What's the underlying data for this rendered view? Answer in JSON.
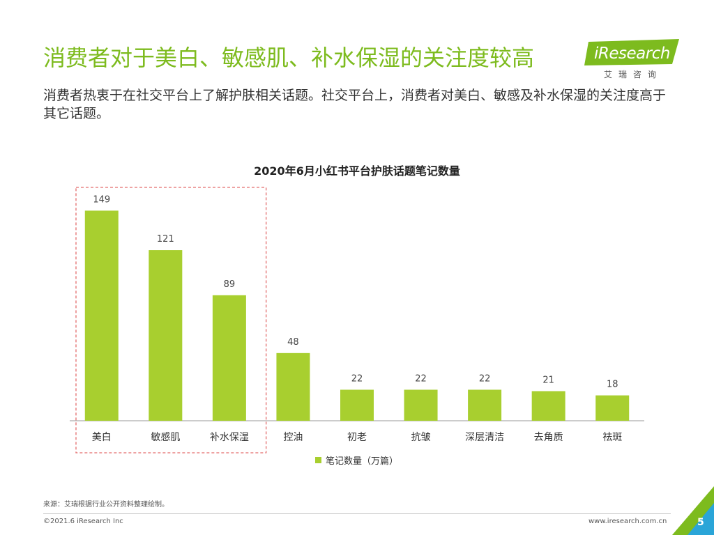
{
  "title": "消费者对于美白、敏感肌、补水保湿的关注度较高",
  "subtitle": "消费者热衷于在社交平台上了解护肤相关话题。社交平台上，消费者对美白、敏感及补水保湿的关注度高于其它话题。",
  "logo": {
    "name": "iResearch",
    "sub": "艾瑞咨询"
  },
  "source": "来源：艾瑞根据行业公开资料整理绘制。",
  "copyright": "©2021.6 iResearch Inc",
  "website": "www.iresearch.com.cn",
  "page_number": "5",
  "colors": {
    "accent": "#7dbb1e",
    "bar": "#a8cf2f",
    "highlight_box": "#e36c6c"
  },
  "chart_data": {
    "type": "bar",
    "title": "2020年6月小红书平台护肤话题笔记数量",
    "categories": [
      "美白",
      "敏感肌",
      "补水保湿",
      "控油",
      "初老",
      "抗皱",
      "深层清洁",
      "去角质",
      "祛斑"
    ],
    "series": [
      {
        "name": "笔记数量（万篇）",
        "values": [
          149,
          121,
          89,
          48,
          22,
          22,
          22,
          21,
          18
        ]
      }
    ],
    "ylim": [
      0,
      165
    ],
    "highlighted_categories": [
      "美白",
      "敏感肌",
      "补水保湿"
    ],
    "legend_position": "bottom"
  }
}
